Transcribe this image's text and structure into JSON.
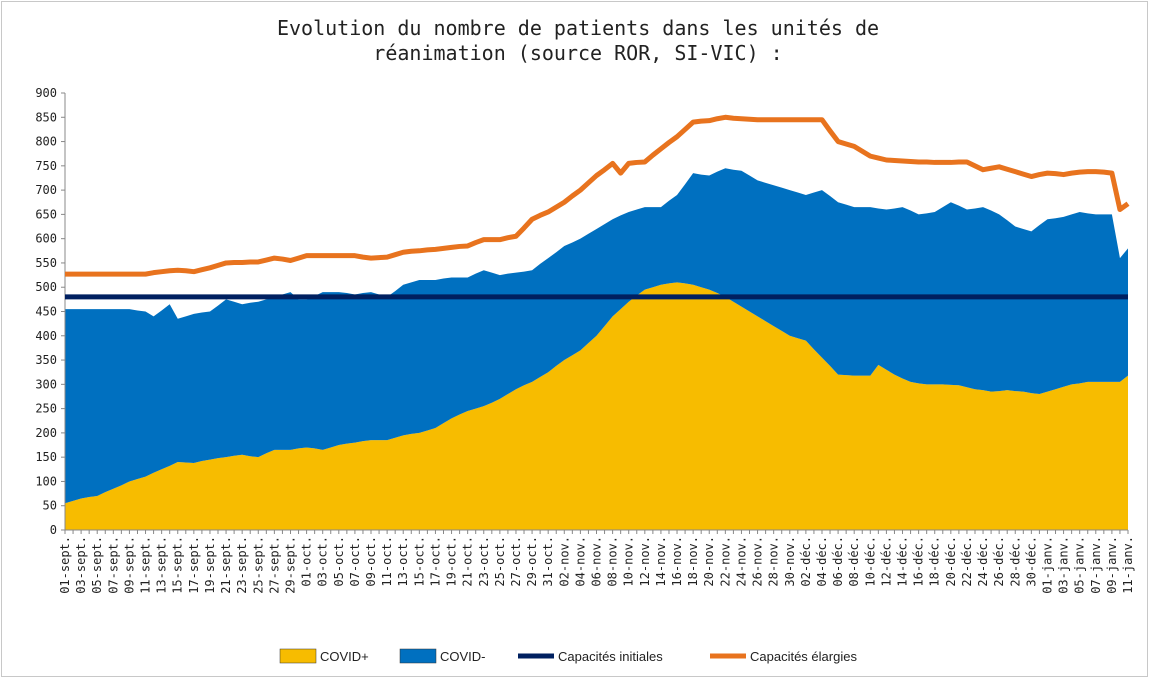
{
  "chart_data": {
    "type": "area",
    "title": [
      "Evolution du nombre de patients dans les unités de",
      "réanimation (source ROR, SI-VIC) :"
    ],
    "categories": [
      "01-sept.",
      null,
      "03-sept.",
      null,
      "05-sept.",
      null,
      "07-sept.",
      null,
      "09-sept.",
      null,
      "11-sept.",
      null,
      "13-sept.",
      null,
      "15-sept.",
      null,
      "17-sept.",
      null,
      "19-sept.",
      null,
      "21-sept.",
      null,
      "23-sept.",
      null,
      "25-sept.",
      null,
      "27-sept.",
      null,
      "29-sept.",
      null,
      "01-oct.",
      null,
      "03-oct.",
      null,
      "05-oct.",
      null,
      "07-oct.",
      null,
      "09-oct.",
      null,
      "11-oct.",
      null,
      "13-oct.",
      null,
      "15-oct.",
      null,
      "17-oct.",
      null,
      "19-oct.",
      null,
      "21-oct.",
      null,
      "23-oct.",
      null,
      "25-oct.",
      null,
      "27-oct.",
      null,
      "29-oct.",
      null,
      "31-oct.",
      null,
      "02-nov.",
      null,
      "04-nov.",
      null,
      "06-nov.",
      null,
      "08-nov.",
      null,
      "10-nov.",
      null,
      "12-nov.",
      null,
      "14-nov.",
      null,
      "16-nov.",
      null,
      "18-nov.",
      null,
      "20-nov.",
      null,
      "22-nov.",
      null,
      "24-nov.",
      null,
      "26-nov.",
      null,
      "28-nov.",
      null,
      "30-nov.",
      null,
      "02-déc.",
      null,
      "04-déc.",
      null,
      "06-déc.",
      null,
      "08-déc.",
      null,
      "10-déc.",
      null,
      "12-déc.",
      null,
      "14-déc.",
      null,
      "16-déc.",
      null,
      "18-déc.",
      null,
      "20-déc.",
      null,
      "22-déc.",
      null,
      "24-déc.",
      null,
      "26-déc.",
      null,
      "28-déc.",
      null,
      "30-déc.",
      null,
      "01-janv.",
      null,
      "03-janv.",
      null,
      "05-janv.",
      null,
      "07-janv.",
      null,
      "09-janv.",
      null,
      "11-janv."
    ],
    "series": [
      {
        "name": "COVID+",
        "kind": "area",
        "color": "#F7BC00",
        "values": [
          55,
          60,
          65,
          68,
          70,
          78,
          85,
          92,
          100,
          105,
          110,
          118,
          125,
          132,
          140,
          139,
          138,
          142,
          145,
          148,
          150,
          153,
          155,
          152,
          150,
          158,
          165,
          165,
          165,
          168,
          170,
          168,
          165,
          170,
          175,
          178,
          180,
          183,
          185,
          185,
          185,
          190,
          195,
          198,
          200,
          205,
          210,
          220,
          230,
          238,
          245,
          250,
          255,
          262,
          270,
          280,
          290,
          298,
          305,
          315,
          325,
          338,
          350,
          360,
          370,
          385,
          400,
          420,
          440,
          455,
          470,
          483,
          495,
          500,
          505,
          508,
          510,
          508,
          505,
          500,
          495,
          488,
          480,
          470,
          460,
          450,
          440,
          430,
          420,
          410,
          400,
          395,
          390,
          372,
          355,
          338,
          320,
          319,
          318,
          318,
          318,
          340,
          330,
          320,
          312,
          305,
          302,
          300,
          300,
          300,
          299,
          298,
          294,
          290,
          288,
          285,
          286,
          288,
          286,
          285,
          282,
          280,
          285,
          290,
          295,
          300,
          302,
          305,
          305,
          305,
          305,
          305,
          318
        ]
      },
      {
        "name": "COVID-",
        "kind": "area",
        "color": "#0070C0",
        "values": [
          400,
          395,
          390,
          387,
          385,
          377,
          370,
          363,
          355,
          347,
          340,
          322,
          327,
          333,
          295,
          301,
          307,
          306,
          305,
          314,
          325,
          317,
          310,
          316,
          320,
          317,
          315,
          320,
          325,
          307,
          305,
          314,
          325,
          320,
          315,
          310,
          305,
          305,
          305,
          300,
          295,
          302,
          310,
          312,
          315,
          310,
          305,
          298,
          290,
          282,
          275,
          278,
          280,
          268,
          255,
          248,
          240,
          234,
          230,
          233,
          235,
          234,
          235,
          232,
          230,
          225,
          220,
          210,
          200,
          193,
          185,
          177,
          170,
          165,
          160,
          170,
          180,
          204,
          230,
          232,
          235,
          250,
          265,
          272,
          280,
          280,
          280,
          285,
          290,
          295,
          300,
          300,
          300,
          323,
          345,
          350,
          355,
          351,
          347,
          347,
          347,
          322,
          330,
          342,
          353,
          353,
          348,
          352,
          355,
          365,
          376,
          370,
          366,
          372,
          377,
          373,
          364,
          350,
          339,
          335,
          333,
          348,
          355,
          352,
          350,
          350,
          353,
          347,
          345,
          345,
          345,
          255,
          262
        ]
      },
      {
        "name": "Capacités initiales",
        "kind": "line",
        "color": "#002060",
        "values": [
          480,
          480,
          480,
          480,
          480,
          480,
          480,
          480,
          480,
          480,
          480,
          480,
          480,
          480,
          480,
          480,
          480,
          480,
          480,
          480,
          480,
          480,
          480,
          480,
          480,
          480,
          480,
          480,
          480,
          480,
          480,
          480,
          480,
          480,
          480,
          480,
          480,
          480,
          480,
          480,
          480,
          480,
          480,
          480,
          480,
          480,
          480,
          480,
          480,
          480,
          480,
          480,
          480,
          480,
          480,
          480,
          480,
          480,
          480,
          480,
          480,
          480,
          480,
          480,
          480,
          480,
          480,
          480,
          480,
          480,
          480,
          480,
          480,
          480,
          480,
          480,
          480,
          480,
          480,
          480,
          480,
          480,
          480,
          480,
          480,
          480,
          480,
          480,
          480,
          480,
          480,
          480,
          480,
          480,
          480,
          480,
          480,
          480,
          480,
          480,
          480,
          480,
          480,
          480,
          480,
          480,
          480,
          480,
          480,
          480,
          480,
          480,
          480,
          480,
          480,
          480,
          480,
          480,
          480,
          480,
          480,
          480,
          480,
          480,
          480,
          480,
          480,
          480,
          480,
          480,
          480,
          480,
          480
        ]
      },
      {
        "name": "Capacités élargies",
        "kind": "line",
        "color": "#E8731E",
        "values": [
          527,
          527,
          527,
          527,
          527,
          527,
          527,
          527,
          527,
          527,
          527,
          530,
          532,
          534,
          535,
          534,
          532,
          536,
          540,
          545,
          550,
          551,
          551,
          552,
          552,
          556,
          560,
          558,
          555,
          560,
          565,
          565,
          565,
          565,
          565,
          565,
          565,
          562,
          560,
          561,
          562,
          567,
          572,
          574,
          575,
          577,
          578,
          580,
          582,
          584,
          585,
          592,
          598,
          598,
          598,
          602,
          605,
          622,
          640,
          648,
          655,
          665,
          675,
          688,
          700,
          715,
          730,
          742,
          755,
          735,
          755,
          757,
          758,
          772,
          785,
          798,
          810,
          825,
          840,
          842,
          843,
          847,
          850,
          848,
          847,
          846,
          845,
          845,
          845,
          845,
          845,
          845,
          845,
          845,
          845,
          822,
          800,
          795,
          790,
          780,
          770,
          766,
          762,
          761,
          760,
          759,
          758,
          758,
          757,
          757,
          757,
          758,
          758,
          750,
          742,
          745,
          748,
          743,
          738,
          733,
          728,
          732,
          735,
          734,
          732,
          735,
          737,
          738,
          738,
          737,
          735,
          660,
          672
        ]
      }
    ],
    "ylim": [
      0,
      900
    ],
    "yticks": [
      0,
      50,
      100,
      150,
      200,
      250,
      300,
      350,
      400,
      450,
      500,
      550,
      600,
      650,
      700,
      750,
      800,
      850,
      900
    ]
  }
}
